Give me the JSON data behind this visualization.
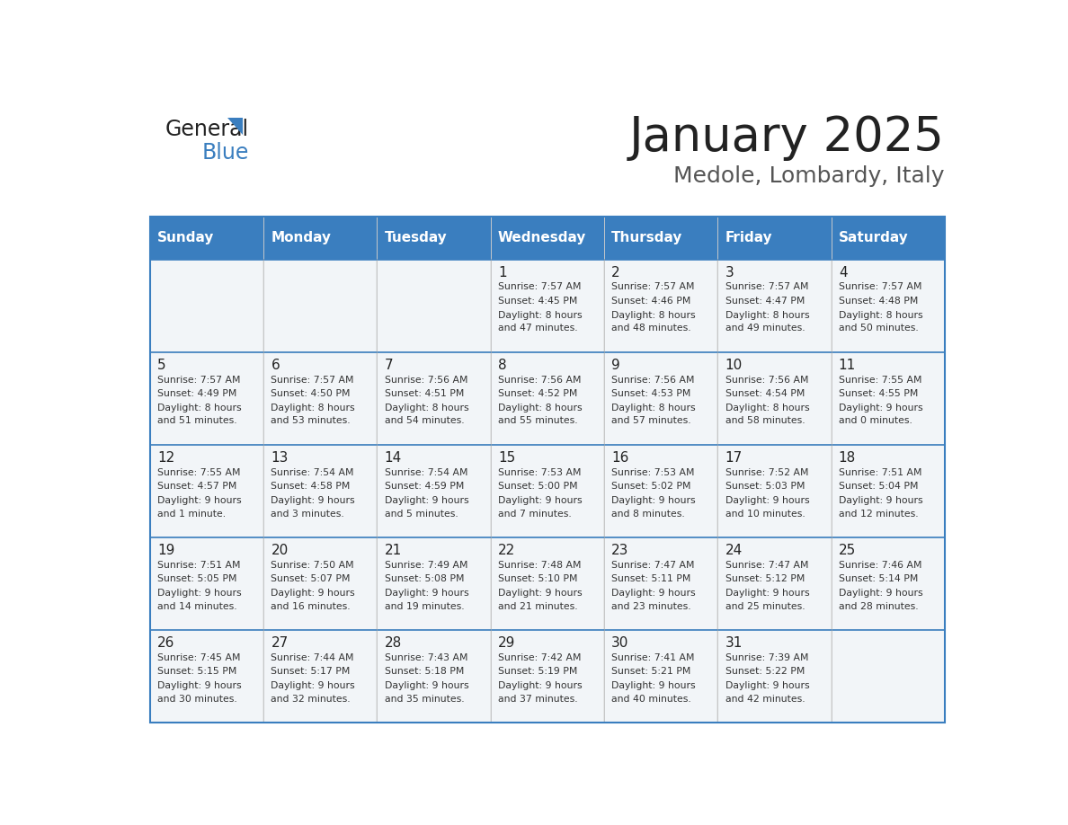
{
  "title": "January 2025",
  "subtitle": "Medole, Lombardy, Italy",
  "header_bg": "#3a7ebf",
  "header_text_color": "#ffffff",
  "border_color": "#3a7ebf",
  "text_color": "#333333",
  "days_of_week": [
    "Sunday",
    "Monday",
    "Tuesday",
    "Wednesday",
    "Thursday",
    "Friday",
    "Saturday"
  ],
  "weeks": [
    [
      {
        "day": "",
        "sunrise": "",
        "sunset": "",
        "daylight": ""
      },
      {
        "day": "",
        "sunrise": "",
        "sunset": "",
        "daylight": ""
      },
      {
        "day": "",
        "sunrise": "",
        "sunset": "",
        "daylight": ""
      },
      {
        "day": "1",
        "sunrise": "7:57 AM",
        "sunset": "4:45 PM",
        "daylight": "8 hours and 47 minutes."
      },
      {
        "day": "2",
        "sunrise": "7:57 AM",
        "sunset": "4:46 PM",
        "daylight": "8 hours and 48 minutes."
      },
      {
        "day": "3",
        "sunrise": "7:57 AM",
        "sunset": "4:47 PM",
        "daylight": "8 hours and 49 minutes."
      },
      {
        "day": "4",
        "sunrise": "7:57 AM",
        "sunset": "4:48 PM",
        "daylight": "8 hours and 50 minutes."
      }
    ],
    [
      {
        "day": "5",
        "sunrise": "7:57 AM",
        "sunset": "4:49 PM",
        "daylight": "8 hours and 51 minutes."
      },
      {
        "day": "6",
        "sunrise": "7:57 AM",
        "sunset": "4:50 PM",
        "daylight": "8 hours and 53 minutes."
      },
      {
        "day": "7",
        "sunrise": "7:56 AM",
        "sunset": "4:51 PM",
        "daylight": "8 hours and 54 minutes."
      },
      {
        "day": "8",
        "sunrise": "7:56 AM",
        "sunset": "4:52 PM",
        "daylight": "8 hours and 55 minutes."
      },
      {
        "day": "9",
        "sunrise": "7:56 AM",
        "sunset": "4:53 PM",
        "daylight": "8 hours and 57 minutes."
      },
      {
        "day": "10",
        "sunrise": "7:56 AM",
        "sunset": "4:54 PM",
        "daylight": "8 hours and 58 minutes."
      },
      {
        "day": "11",
        "sunrise": "7:55 AM",
        "sunset": "4:55 PM",
        "daylight": "9 hours and 0 minutes."
      }
    ],
    [
      {
        "day": "12",
        "sunrise": "7:55 AM",
        "sunset": "4:57 PM",
        "daylight": "9 hours and 1 minute."
      },
      {
        "day": "13",
        "sunrise": "7:54 AM",
        "sunset": "4:58 PM",
        "daylight": "9 hours and 3 minutes."
      },
      {
        "day": "14",
        "sunrise": "7:54 AM",
        "sunset": "4:59 PM",
        "daylight": "9 hours and 5 minutes."
      },
      {
        "day": "15",
        "sunrise": "7:53 AM",
        "sunset": "5:00 PM",
        "daylight": "9 hours and 7 minutes."
      },
      {
        "day": "16",
        "sunrise": "7:53 AM",
        "sunset": "5:02 PM",
        "daylight": "9 hours and 8 minutes."
      },
      {
        "day": "17",
        "sunrise": "7:52 AM",
        "sunset": "5:03 PM",
        "daylight": "9 hours and 10 minutes."
      },
      {
        "day": "18",
        "sunrise": "7:51 AM",
        "sunset": "5:04 PM",
        "daylight": "9 hours and 12 minutes."
      }
    ],
    [
      {
        "day": "19",
        "sunrise": "7:51 AM",
        "sunset": "5:05 PM",
        "daylight": "9 hours and 14 minutes."
      },
      {
        "day": "20",
        "sunrise": "7:50 AM",
        "sunset": "5:07 PM",
        "daylight": "9 hours and 16 minutes."
      },
      {
        "day": "21",
        "sunrise": "7:49 AM",
        "sunset": "5:08 PM",
        "daylight": "9 hours and 19 minutes."
      },
      {
        "day": "22",
        "sunrise": "7:48 AM",
        "sunset": "5:10 PM",
        "daylight": "9 hours and 21 minutes."
      },
      {
        "day": "23",
        "sunrise": "7:47 AM",
        "sunset": "5:11 PM",
        "daylight": "9 hours and 23 minutes."
      },
      {
        "day": "24",
        "sunrise": "7:47 AM",
        "sunset": "5:12 PM",
        "daylight": "9 hours and 25 minutes."
      },
      {
        "day": "25",
        "sunrise": "7:46 AM",
        "sunset": "5:14 PM",
        "daylight": "9 hours and 28 minutes."
      }
    ],
    [
      {
        "day": "26",
        "sunrise": "7:45 AM",
        "sunset": "5:15 PM",
        "daylight": "9 hours and 30 minutes."
      },
      {
        "day": "27",
        "sunrise": "7:44 AM",
        "sunset": "5:17 PM",
        "daylight": "9 hours and 32 minutes."
      },
      {
        "day": "28",
        "sunrise": "7:43 AM",
        "sunset": "5:18 PM",
        "daylight": "9 hours and 35 minutes."
      },
      {
        "day": "29",
        "sunrise": "7:42 AM",
        "sunset": "5:19 PM",
        "daylight": "9 hours and 37 minutes."
      },
      {
        "day": "30",
        "sunrise": "7:41 AM",
        "sunset": "5:21 PM",
        "daylight": "9 hours and 40 minutes."
      },
      {
        "day": "31",
        "sunrise": "7:39 AM",
        "sunset": "5:22 PM",
        "daylight": "9 hours and 42 minutes."
      },
      {
        "day": "",
        "sunrise": "",
        "sunset": "",
        "daylight": ""
      }
    ]
  ]
}
